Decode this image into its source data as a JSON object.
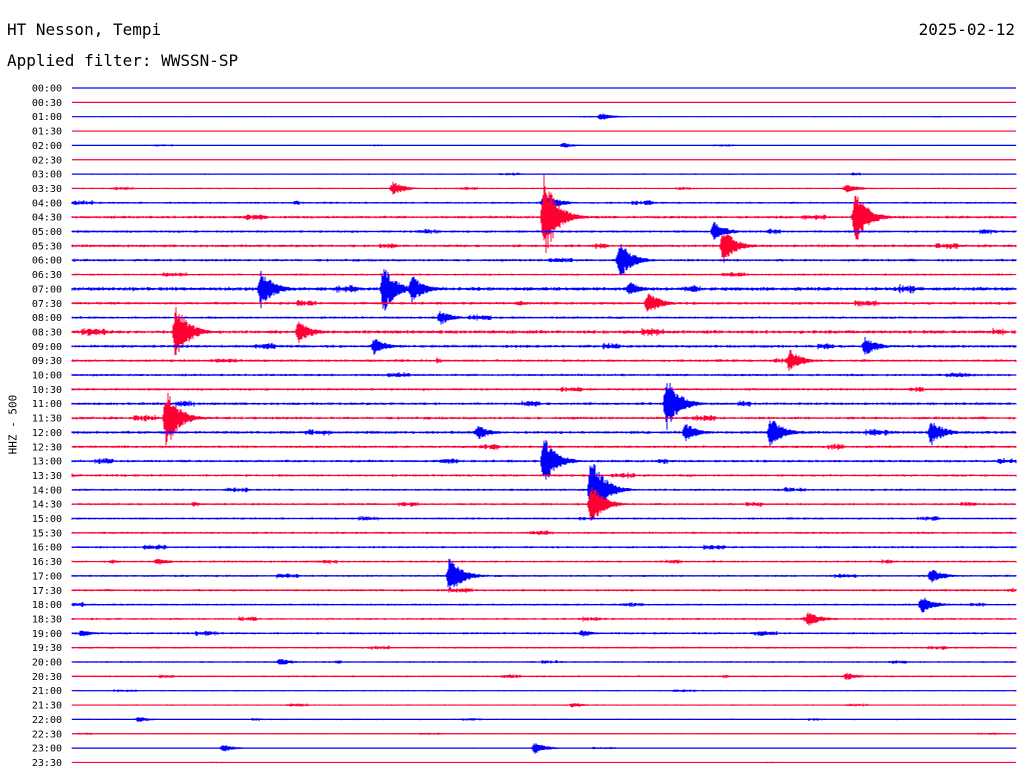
{
  "header": {
    "station": "HT Nesson, Tempi",
    "date": "2025-02-12",
    "filter": "Applied filter: WWSSN-SP"
  },
  "chart_data": {
    "type": "line",
    "title": "HT Nesson, Tempi",
    "subtitle": "Applied filter: WWSSN-SP",
    "ylabel": "HHZ - 500",
    "colors": [
      "#0000ff",
      "#ff0033"
    ],
    "rows": [
      "00:00",
      "00:30",
      "01:00",
      "01:30",
      "02:00",
      "02:30",
      "03:00",
      "03:30",
      "04:00",
      "04:30",
      "05:00",
      "05:30",
      "06:00",
      "06:30",
      "07:00",
      "07:30",
      "08:00",
      "08:30",
      "09:00",
      "09:30",
      "10:00",
      "10:30",
      "11:00",
      "11:30",
      "12:00",
      "12:30",
      "13:00",
      "13:30",
      "14:00",
      "14:30",
      "15:00",
      "15:30",
      "16:00",
      "16:30",
      "17:00",
      "17:30",
      "18:00",
      "18:30",
      "19:00",
      "19:30",
      "20:00",
      "20:30",
      "21:00",
      "21:30",
      "22:00",
      "22:30",
      "23:00",
      "23:30"
    ],
    "noise": [
      0.2,
      0.1,
      0.5,
      0.2,
      0.6,
      0.3,
      0.8,
      0.9,
      1.2,
      1.6,
      1.4,
      1.6,
      1.5,
      1.2,
      2.2,
      1.6,
      1.4,
      2.0,
      1.7,
      1.5,
      1.4,
      1.4,
      1.6,
      1.6,
      1.7,
      1.5,
      1.5,
      1.4,
      1.3,
      1.3,
      1.2,
      1.3,
      1.3,
      1.2,
      1.2,
      1.3,
      1.2,
      1.2,
      1.3,
      1.1,
      1.0,
      1.0,
      0.8,
      0.8,
      0.8,
      0.6,
      0.6,
      0.4
    ],
    "events": [
      {
        "row": 2,
        "t": 0.56,
        "amp": 4
      },
      {
        "row": 4,
        "t": 0.52,
        "amp": 3
      },
      {
        "row": 7,
        "t": 0.34,
        "amp": 7
      },
      {
        "row": 7,
        "t": 0.82,
        "amp": 5
      },
      {
        "row": 8,
        "t": 0.5,
        "amp": 12
      },
      {
        "row": 9,
        "t": 0.5,
        "amp": 45
      },
      {
        "row": 9,
        "t": 0.83,
        "amp": 28
      },
      {
        "row": 10,
        "t": 0.68,
        "amp": 10
      },
      {
        "row": 11,
        "t": 0.69,
        "amp": 18
      },
      {
        "row": 12,
        "t": 0.58,
        "amp": 20
      },
      {
        "row": 14,
        "t": 0.2,
        "amp": 20
      },
      {
        "row": 14,
        "t": 0.33,
        "amp": 25
      },
      {
        "row": 14,
        "t": 0.36,
        "amp": 15
      },
      {
        "row": 14,
        "t": 0.59,
        "amp": 8
      },
      {
        "row": 15,
        "t": 0.61,
        "amp": 12
      },
      {
        "row": 16,
        "t": 0.39,
        "amp": 8
      },
      {
        "row": 17,
        "t": 0.11,
        "amp": 30
      },
      {
        "row": 17,
        "t": 0.24,
        "amp": 12
      },
      {
        "row": 18,
        "t": 0.32,
        "amp": 9
      },
      {
        "row": 18,
        "t": 0.84,
        "amp": 10
      },
      {
        "row": 19,
        "t": 0.76,
        "amp": 12
      },
      {
        "row": 22,
        "t": 0.63,
        "amp": 28
      },
      {
        "row": 23,
        "t": 0.1,
        "amp": 32
      },
      {
        "row": 24,
        "t": 0.43,
        "amp": 8
      },
      {
        "row": 24,
        "t": 0.65,
        "amp": 10
      },
      {
        "row": 24,
        "t": 0.74,
        "amp": 16
      },
      {
        "row": 24,
        "t": 0.91,
        "amp": 14
      },
      {
        "row": 26,
        "t": 0.5,
        "amp": 25
      },
      {
        "row": 28,
        "t": 0.55,
        "amp": 38
      },
      {
        "row": 29,
        "t": 0.55,
        "amp": 22
      },
      {
        "row": 33,
        "t": 0.09,
        "amp": 4
      },
      {
        "row": 34,
        "t": 0.4,
        "amp": 20
      },
      {
        "row": 34,
        "t": 0.91,
        "amp": 8
      },
      {
        "row": 36,
        "t": 0.9,
        "amp": 9
      },
      {
        "row": 37,
        "t": 0.78,
        "amp": 8
      },
      {
        "row": 38,
        "t": 0.01,
        "amp": 4
      },
      {
        "row": 38,
        "t": 0.54,
        "amp": 4
      },
      {
        "row": 40,
        "t": 0.22,
        "amp": 4
      },
      {
        "row": 41,
        "t": 0.82,
        "amp": 4
      },
      {
        "row": 43,
        "t": 0.53,
        "amp": 3
      },
      {
        "row": 44,
        "t": 0.07,
        "amp": 3
      },
      {
        "row": 46,
        "t": 0.16,
        "amp": 4
      },
      {
        "row": 46,
        "t": 0.49,
        "amp": 6
      }
    ]
  }
}
